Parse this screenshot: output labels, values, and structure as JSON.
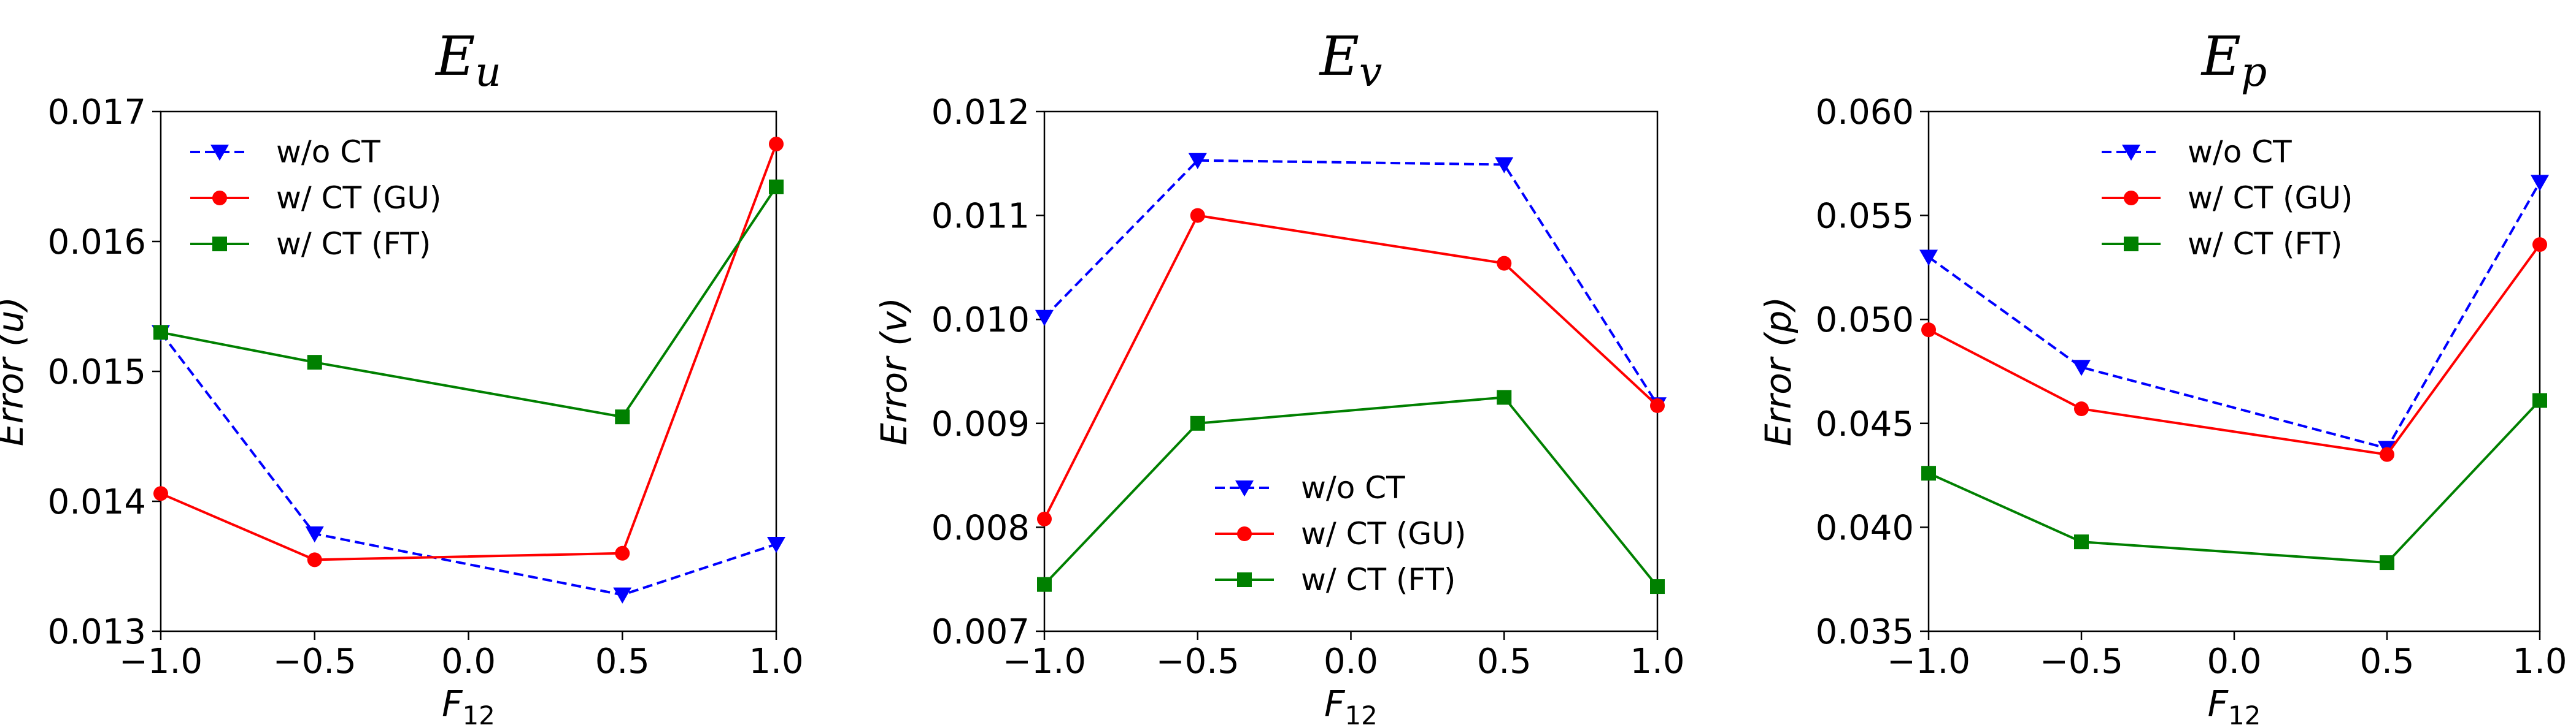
{
  "chart_data": [
    {
      "type": "line",
      "title": "E",
      "title_sub": "u",
      "xlabel": "F",
      "xlabel_sub": "12",
      "ylabel": "Error (u)",
      "x": [
        -1.0,
        -0.5,
        0.5,
        1.0
      ],
      "xlim": [
        -1.0,
        1.0
      ],
      "ylim": [
        0.013,
        0.017
      ],
      "xticks": [
        "−1.0",
        "−0.5",
        "0.0",
        "0.5",
        "1.0"
      ],
      "xtick_values": [
        -1.0,
        -0.5,
        0.0,
        0.5,
        1.0
      ],
      "yticks": [
        "0.013",
        "0.014",
        "0.015",
        "0.016",
        "0.017"
      ],
      "ytick_values": [
        0.013,
        0.014,
        0.015,
        0.016,
        0.017
      ],
      "legend_position": "upper-left",
      "series": [
        {
          "name": "w/o CT",
          "color": "#0000ff",
          "style": "dashed",
          "marker": "triangle-down",
          "values": [
            0.0153,
            0.01375,
            0.01328,
            0.01367
          ]
        },
        {
          "name": "w/ CT (GU)",
          "color": "#ff0000",
          "style": "solid",
          "marker": "circle",
          "values": [
            0.01406,
            0.01355,
            0.0136,
            0.01675
          ]
        },
        {
          "name": "w/ CT (FT)",
          "color": "#008000",
          "style": "solid",
          "marker": "square",
          "values": [
            0.0153,
            0.01507,
            0.01465,
            0.01642
          ]
        }
      ]
    },
    {
      "type": "line",
      "title": "E",
      "title_sub": "v",
      "xlabel": "F",
      "xlabel_sub": "12",
      "ylabel": "Error (v)",
      "x": [
        -1.0,
        -0.5,
        0.5,
        1.0
      ],
      "xlim": [
        -1.0,
        1.0
      ],
      "ylim": [
        0.007,
        0.012
      ],
      "xticks": [
        "−1.0",
        "−0.5",
        "0.0",
        "0.5",
        "1.0"
      ],
      "xtick_values": [
        -1.0,
        -0.5,
        0.0,
        0.5,
        1.0
      ],
      "yticks": [
        "0.007",
        "0.008",
        "0.009",
        "0.010",
        "0.011",
        "0.012"
      ],
      "ytick_values": [
        0.007,
        0.008,
        0.009,
        0.01,
        0.011,
        0.012
      ],
      "legend_position": "lower-center",
      "series": [
        {
          "name": "w/o CT",
          "color": "#0000ff",
          "style": "dashed",
          "marker": "triangle-down",
          "values": [
            0.01002,
            0.01153,
            0.01149,
            0.00918
          ]
        },
        {
          "name": "w/ CT (GU)",
          "color": "#ff0000",
          "style": "solid",
          "marker": "circle",
          "values": [
            0.00808,
            0.011,
            0.01054,
            0.00917
          ]
        },
        {
          "name": "w/ CT (FT)",
          "color": "#008000",
          "style": "solid",
          "marker": "square",
          "values": [
            0.00745,
            0.009,
            0.00925,
            0.00743
          ]
        }
      ]
    },
    {
      "type": "line",
      "title": "E",
      "title_sub": "p",
      "xlabel": "F",
      "xlabel_sub": "12",
      "ylabel": "Error (p)",
      "x": [
        -1.0,
        -0.5,
        0.5,
        1.0
      ],
      "xlim": [
        -1.0,
        1.0
      ],
      "ylim": [
        0.035,
        0.06
      ],
      "xticks": [
        "−1.0",
        "−0.5",
        "0.0",
        "0.5",
        "1.0"
      ],
      "xtick_values": [
        -1.0,
        -0.5,
        0.0,
        0.5,
        1.0
      ],
      "yticks": [
        "0.035",
        "0.040",
        "0.045",
        "0.050",
        "0.055",
        "0.060"
      ],
      "ytick_values": [
        0.035,
        0.04,
        0.045,
        0.05,
        0.055,
        0.06
      ],
      "legend_position": "upper-center",
      "series": [
        {
          "name": "w/o CT",
          "color": "#0000ff",
          "style": "dashed",
          "marker": "triangle-down",
          "values": [
            0.053,
            0.0477,
            0.0438,
            0.0566
          ]
        },
        {
          "name": "w/ CT (GU)",
          "color": "#ff0000",
          "style": "solid",
          "marker": "circle",
          "values": [
            0.0495,
            0.0457,
            0.0435,
            0.0536
          ]
        },
        {
          "name": "w/ CT (FT)",
          "color": "#008000",
          "style": "solid",
          "marker": "square",
          "values": [
            0.0426,
            0.0393,
            0.0383,
            0.0461
          ]
        }
      ]
    }
  ]
}
